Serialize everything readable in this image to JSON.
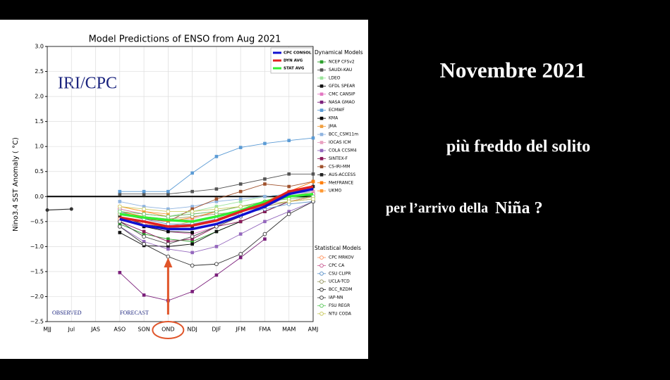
{
  "chart_data": {
    "type": "line",
    "title": "Model Predictions of ENSO from Aug 2021",
    "y_label": "Nino3.4 SST Anomaly ( °C)",
    "annotations": [
      "IRI/CPC",
      "OBSERVED",
      "FORECAST"
    ],
    "categories": [
      "MJJ",
      "Jul",
      "JAS",
      "ASO",
      "SON",
      "OND",
      "NDJ",
      "DJF",
      "JFM",
      "FMA",
      "MAM",
      "AMJ"
    ],
    "ylim": [
      -2.5,
      3.0
    ],
    "yticks": [
      {
        "value": -2.5,
        "label": "−2.5"
      },
      {
        "value": -2.0,
        "label": "−2.0"
      },
      {
        "value": -1.5,
        "label": "−1.5"
      },
      {
        "value": -1.0,
        "label": "−1.0"
      },
      {
        "value": -0.5,
        "label": "−0.5"
      },
      {
        "value": 0,
        "label": "0.0"
      },
      {
        "value": 0.5,
        "label": "0.5"
      },
      {
        "value": 1.0,
        "label": "1.0"
      },
      {
        "value": 1.5,
        "label": "1.5"
      },
      {
        "value": 2.0,
        "label": "2.0"
      },
      {
        "value": 2.5,
        "label": "2.5"
      },
      {
        "value": 3.0,
        "label": "3.0"
      }
    ],
    "grid": true,
    "legend_titles": [
      "Dynamical Models",
      "Statistical Models"
    ],
    "observed": {
      "color": "#333333",
      "values": [
        -0.27,
        -0.25,
        null,
        null,
        null,
        null,
        null,
        null,
        null,
        null,
        null,
        null
      ]
    },
    "series": [
      {
        "name": "CPC CONSOL",
        "color": "#1010d0",
        "marker": "line",
        "values": [
          null,
          null,
          null,
          -0.45,
          -0.58,
          -0.65,
          -0.65,
          -0.55,
          -0.38,
          -0.2,
          0.05,
          0.15
        ]
      },
      {
        "name": "DYN AVG",
        "color": "#e02020",
        "marker": "line",
        "values": [
          null,
          null,
          null,
          -0.42,
          -0.5,
          -0.6,
          -0.58,
          -0.48,
          -0.3,
          -0.15,
          0.1,
          0.2
        ]
      },
      {
        "name": "STAT AVG",
        "color": "#33ee33",
        "marker": "line",
        "values": [
          null,
          null,
          null,
          -0.35,
          -0.42,
          -0.47,
          -0.5,
          -0.4,
          -0.28,
          -0.1,
          0.0,
          0.05
        ]
      },
      {
        "name": "NCEP CFSv2",
        "color": "#2ca02c",
        "marker": "square",
        "values": [
          null,
          null,
          null,
          -0.55,
          -0.75,
          -0.85,
          -0.9,
          -0.7,
          -0.5,
          -0.3,
          -0.1,
          0.0
        ]
      },
      {
        "name": "SAUDI-KAU",
        "color": "#555555",
        "marker": "square",
        "values": [
          null,
          null,
          null,
          0.05,
          0.05,
          0.05,
          0.1,
          0.15,
          0.25,
          0.35,
          0.45,
          0.45
        ]
      },
      {
        "name": "LDEO",
        "color": "#9be39b",
        "marker": "square",
        "values": [
          null,
          null,
          null,
          -0.3,
          -0.35,
          -0.4,
          -0.3,
          -0.2,
          -0.1,
          0.0,
          0.05,
          0.1
        ]
      },
      {
        "name": "GFDL SPEAR",
        "color": "#111111",
        "marker": "square",
        "values": [
          null,
          null,
          null,
          -0.72,
          -0.98,
          -1.0,
          -0.95,
          -0.7,
          -0.5,
          -0.3,
          -0.1,
          0.0
        ]
      },
      {
        "name": "CMC CANSIP",
        "color": "#e377c2",
        "marker": "square",
        "values": [
          null,
          null,
          null,
          -0.4,
          -0.6,
          -0.7,
          -0.75,
          -0.6,
          -0.4,
          -0.2,
          0.0,
          0.1
        ]
      },
      {
        "name": "NASA GMAO",
        "color": "#7b1f7b",
        "marker": "square",
        "values": [
          null,
          null,
          null,
          -1.52,
          -1.97,
          -2.08,
          -1.9,
          -1.57,
          -1.22,
          -0.85,
          null,
          null
        ]
      },
      {
        "name": "ECMWF",
        "color": "#5b9bd5",
        "marker": "square",
        "values": [
          null,
          null,
          null,
          0.1,
          0.1,
          0.1,
          0.47,
          0.8,
          0.98,
          1.06,
          1.12,
          1.17
        ]
      },
      {
        "name": "KMA",
        "color": "#000000",
        "marker": "square",
        "values": [
          null,
          null,
          null,
          -0.45,
          -0.6,
          -0.7,
          -0.72,
          null,
          null,
          null,
          null,
          null
        ]
      },
      {
        "name": "JMA",
        "color": "#f0a040",
        "marker": "square",
        "values": [
          null,
          null,
          null,
          -0.2,
          -0.3,
          -0.35,
          null,
          null,
          null,
          null,
          null,
          null
        ]
      },
      {
        "name": "BCC_CSM11m",
        "color": "#8fb4e0",
        "marker": "square",
        "values": [
          null,
          null,
          null,
          -0.1,
          -0.2,
          -0.25,
          -0.2,
          -0.1,
          -0.05,
          0.0,
          0.05,
          0.1
        ]
      },
      {
        "name": "IOCAS ICM",
        "color": "#e8a0c0",
        "marker": "square",
        "values": [
          null,
          null,
          null,
          -0.3,
          -0.4,
          -0.5,
          -0.45,
          -0.3,
          -0.2,
          -0.1,
          0.0,
          0.1
        ]
      },
      {
        "name": "COLA CCSM4",
        "color": "#9467bd",
        "marker": "square",
        "values": [
          null,
          null,
          null,
          -0.6,
          -0.9,
          -1.05,
          -1.12,
          -1.0,
          -0.75,
          -0.5,
          -0.3,
          -0.1
        ]
      },
      {
        "name": "SINTEX-F",
        "color": "#8b1a5a",
        "marker": "square",
        "values": [
          null,
          null,
          null,
          -0.5,
          -0.7,
          -0.9,
          -0.85,
          -0.6,
          -0.5,
          -0.3,
          -0.1,
          0.0
        ]
      },
      {
        "name": "CS-IRI-MM",
        "color": "#a0522d",
        "marker": "square",
        "values": [
          null,
          null,
          null,
          -0.35,
          -0.45,
          -0.5,
          -0.25,
          -0.05,
          0.1,
          0.25,
          0.2,
          0.3
        ]
      },
      {
        "name": "AUS-ACCESS",
        "color": "#222222",
        "marker": "square",
        "values": [
          null,
          null,
          null,
          -0.4,
          -0.55,
          -0.62,
          -0.6,
          -0.45,
          -0.3,
          -0.15,
          0.05,
          0.2
        ]
      },
      {
        "name": "MetFRANCE",
        "color": "#ff7f0e",
        "marker": "square",
        "values": [
          null,
          null,
          null,
          -0.3,
          -0.4,
          -0.5,
          -0.42,
          -0.3,
          -0.2,
          -0.1,
          0.1,
          0.3
        ]
      },
      {
        "name": "UKMO",
        "color": "#ff9933",
        "marker": "square",
        "values": [
          null,
          null,
          null,
          -0.2,
          -0.3,
          -0.4,
          null,
          null,
          null,
          null,
          null,
          null
        ]
      },
      {
        "name": "CPC MRKOV",
        "color": "#ff9966",
        "marker": "circle",
        "values": [
          null,
          null,
          null,
          -0.45,
          -0.55,
          -0.6,
          -0.5,
          -0.4,
          -0.3,
          -0.2,
          -0.1,
          0.0
        ]
      },
      {
        "name": "CPC CA",
        "color": "#cc6699",
        "marker": "circle",
        "values": [
          null,
          null,
          null,
          -0.25,
          -0.35,
          -0.4,
          -0.35,
          -0.3,
          -0.2,
          -0.1,
          0.0,
          0.05
        ]
      },
      {
        "name": "CSU CLIPR",
        "color": "#6699cc",
        "marker": "circle",
        "values": [
          null,
          null,
          null,
          -0.3,
          -0.45,
          -0.55,
          -0.55,
          -0.45,
          -0.35,
          -0.25,
          -0.15,
          -0.1
        ]
      },
      {
        "name": "UCLA-TCD",
        "color": "#999966",
        "marker": "circle",
        "values": [
          null,
          null,
          null,
          -0.35,
          -0.4,
          -0.45,
          -0.4,
          -0.35,
          -0.3,
          -0.2,
          -0.1,
          -0.05
        ]
      },
      {
        "name": "BCC_RZDM",
        "color": "#333333",
        "marker": "circle",
        "values": [
          null,
          null,
          null,
          -0.6,
          -0.95,
          -1.2,
          -1.38,
          -1.35,
          -1.15,
          -0.75,
          -0.35,
          -0.1
        ]
      },
      {
        "name": "IAP-NN",
        "color": "#444444",
        "marker": "circle",
        "values": [
          null,
          null,
          null,
          -0.5,
          -0.8,
          -0.95,
          -0.8,
          -0.6,
          -0.4,
          -0.2,
          null,
          null
        ]
      },
      {
        "name": "FSU REGR",
        "color": "#66cc66",
        "marker": "circle",
        "values": [
          null,
          null,
          null,
          -0.3,
          -0.35,
          -0.4,
          -0.35,
          -0.3,
          -0.2,
          -0.1,
          -0.05,
          0.0
        ]
      },
      {
        "name": "NTU CODA",
        "color": "#cccc66",
        "marker": "circle",
        "values": [
          null,
          null,
          null,
          -0.2,
          -0.25,
          -0.3,
          -0.3,
          -0.25,
          -0.2,
          -0.15,
          -0.1,
          -0.05
        ]
      }
    ]
  },
  "slide": {
    "heading": "Novembre 2021",
    "line1": "più freddo del solito",
    "line2": "per l’arrivo della",
    "line2_emphasis": "Niña ?"
  }
}
